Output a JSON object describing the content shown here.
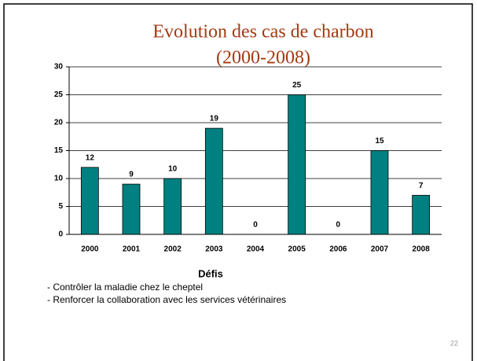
{
  "chart_data": {
    "type": "bar",
    "title": "Evolution des cas de charbon",
    "subtitle": "(2000-2008)",
    "categories": [
      "2000",
      "2001",
      "2002",
      "2003",
      "2004",
      "2005",
      "2006",
      "2007",
      "2008"
    ],
    "values": [
      12,
      9,
      10,
      19,
      0,
      25,
      0,
      15,
      7
    ],
    "color": "#008080",
    "ylim": [
      0,
      30
    ],
    "yticks": [
      0,
      5,
      10,
      15,
      20,
      25,
      30
    ],
    "grid": true
  },
  "notes": {
    "heading": "Défis",
    "items": [
      "- Contrôler la maladie chez le cheptel",
      "- Renforcer la collaboration avec les services vétérinaires"
    ],
    "page_number": "22"
  }
}
